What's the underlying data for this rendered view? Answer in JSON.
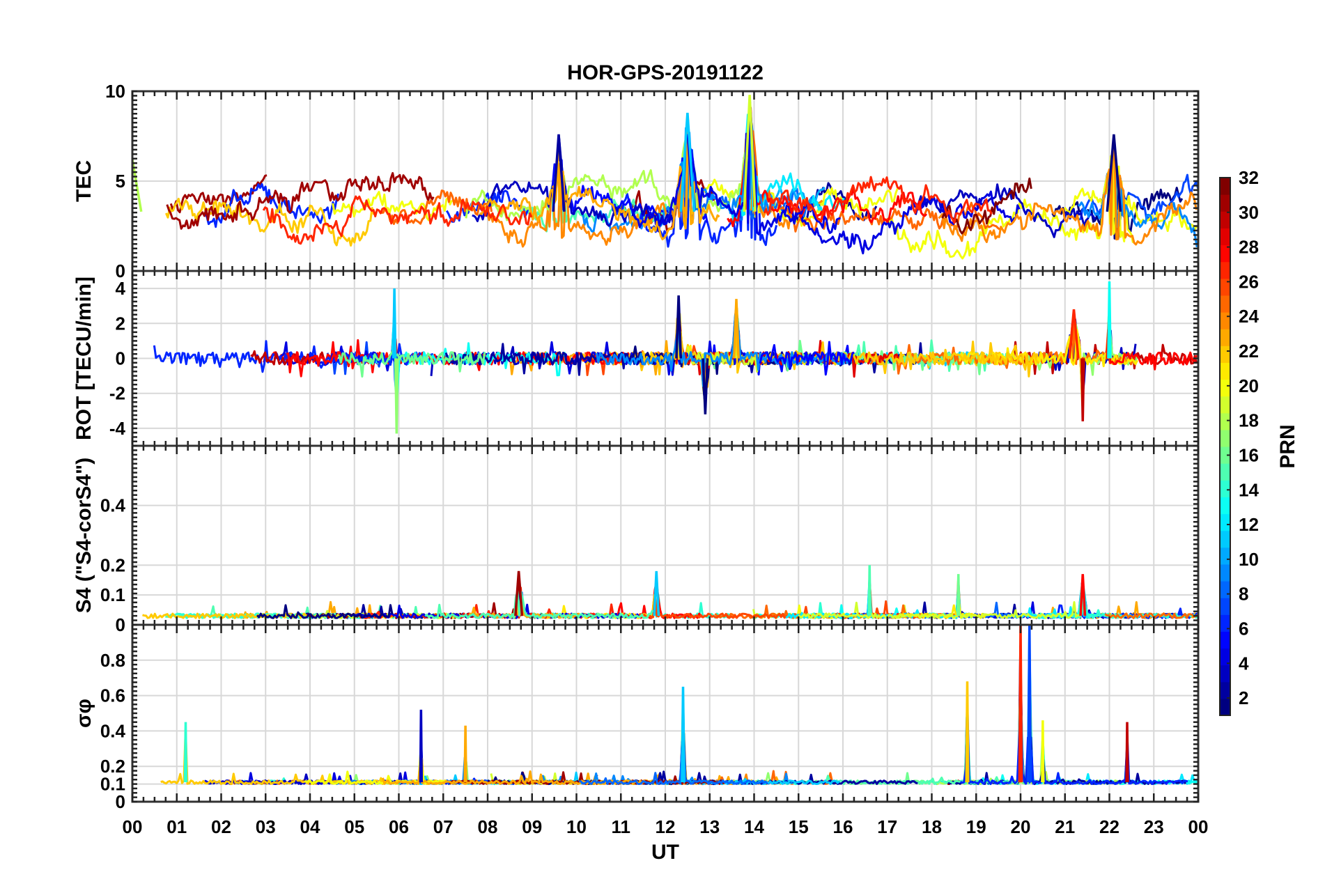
{
  "chart_data": {
    "title": "HOR-GPS-20191122",
    "type": "line",
    "xlabel": "UT",
    "xlim": [
      0,
      24
    ],
    "x_ticks": [
      0,
      1,
      2,
      3,
      4,
      5,
      6,
      7,
      8,
      9,
      10,
      11,
      12,
      13,
      14,
      15,
      16,
      17,
      18,
      19,
      20,
      21,
      22,
      23,
      24
    ],
    "x_tick_labels": [
      "00",
      "01",
      "02",
      "03",
      "04",
      "05",
      "06",
      "07",
      "08",
      "09",
      "10",
      "11",
      "12",
      "13",
      "14",
      "15",
      "16",
      "17",
      "18",
      "19",
      "20",
      "21",
      "22",
      "23",
      "00"
    ],
    "colorbar": {
      "label": "PRN",
      "range": [
        1,
        32
      ],
      "ticks": [
        2,
        4,
        6,
        8,
        10,
        12,
        14,
        16,
        18,
        20,
        22,
        24,
        26,
        28,
        30,
        32
      ],
      "colormap": "jet"
    },
    "panels": [
      {
        "id": "tec",
        "ylabel": "TEC",
        "ylim": [
          0,
          10
        ],
        "y_ticks": [
          0,
          5,
          10
        ],
        "series_summary": "TEC per PRN, mostly 2-6, peaks near 10 around 13.9 UT",
        "baseline": 3.3,
        "noise": 0.9,
        "events": [
          {
            "t": 0.0,
            "v": 6.2,
            "w": 0.4
          },
          {
            "t": 9.6,
            "v": 7.6,
            "w": 0.25
          },
          {
            "t": 12.5,
            "v": 8.8,
            "w": 0.3
          },
          {
            "t": 13.9,
            "v": 9.8,
            "w": 0.25
          },
          {
            "t": 22.1,
            "v": 7.6,
            "w": 0.3
          }
        ]
      },
      {
        "id": "rot",
        "ylabel": "ROT [TECU/min]",
        "ylim": [
          -5,
          5
        ],
        "y_ticks": [
          -4,
          -2,
          0,
          2,
          4
        ],
        "series_summary": "ROT per PRN centred on 0, spikes to about +/-4",
        "baseline": 0.0,
        "noise": 0.35,
        "events": [
          {
            "t": 5.9,
            "v": 4.0,
            "w": 0.05
          },
          {
            "t": 5.95,
            "v": -4.3,
            "w": 0.05
          },
          {
            "t": 12.3,
            "v": 3.6,
            "w": 0.1
          },
          {
            "t": 12.9,
            "v": -3.2,
            "w": 0.1
          },
          {
            "t": 13.6,
            "v": 3.4,
            "w": 0.1
          },
          {
            "t": 21.2,
            "v": 2.8,
            "w": 0.2
          },
          {
            "t": 22.0,
            "v": 4.4,
            "w": 0.05
          },
          {
            "t": 21.4,
            "v": -3.6,
            "w": 0.05
          }
        ]
      },
      {
        "id": "s4",
        "ylabel": "S4 (\"S4-corS4\")",
        "ylim": [
          0,
          0.6
        ],
        "y_ticks": [
          0,
          0.1,
          0.2,
          0.4
        ],
        "series_summary": "S4 per PRN, mostly below 0.1, peaks near 0.2",
        "baseline": 0.03,
        "noise": 0.015,
        "events": [
          {
            "t": 8.7,
            "v": 0.18,
            "w": 0.15
          },
          {
            "t": 11.8,
            "v": 0.18,
            "w": 0.1
          },
          {
            "t": 16.6,
            "v": 0.2,
            "w": 0.03
          },
          {
            "t": 18.6,
            "v": 0.17,
            "w": 0.03
          },
          {
            "t": 21.4,
            "v": 0.17,
            "w": 0.1
          }
        ]
      },
      {
        "id": "sigma_phi",
        "ylabel": "σφ",
        "ylim": [
          0,
          1
        ],
        "y_ticks": [
          0,
          0.1,
          0.2,
          0.4,
          0.6,
          0.8
        ],
        "series_summary": "Phase scintillation per PRN, baseline ~0.1, spikes to 1 near 20 UT",
        "baseline": 0.11,
        "noise": 0.02,
        "events": [
          {
            "t": 1.2,
            "v": 0.45,
            "w": 0.03
          },
          {
            "t": 6.5,
            "v": 0.52,
            "w": 0.03
          },
          {
            "t": 7.5,
            "v": 0.43,
            "w": 0.03
          },
          {
            "t": 12.4,
            "v": 0.65,
            "w": 0.05
          },
          {
            "t": 18.8,
            "v": 0.68,
            "w": 0.04
          },
          {
            "t": 20.0,
            "v": 1.0,
            "w": 0.05
          },
          {
            "t": 20.2,
            "v": 1.0,
            "w": 0.06
          },
          {
            "t": 20.5,
            "v": 0.46,
            "w": 0.03
          },
          {
            "t": 22.4,
            "v": 0.45,
            "w": 0.03
          }
        ]
      }
    ]
  }
}
